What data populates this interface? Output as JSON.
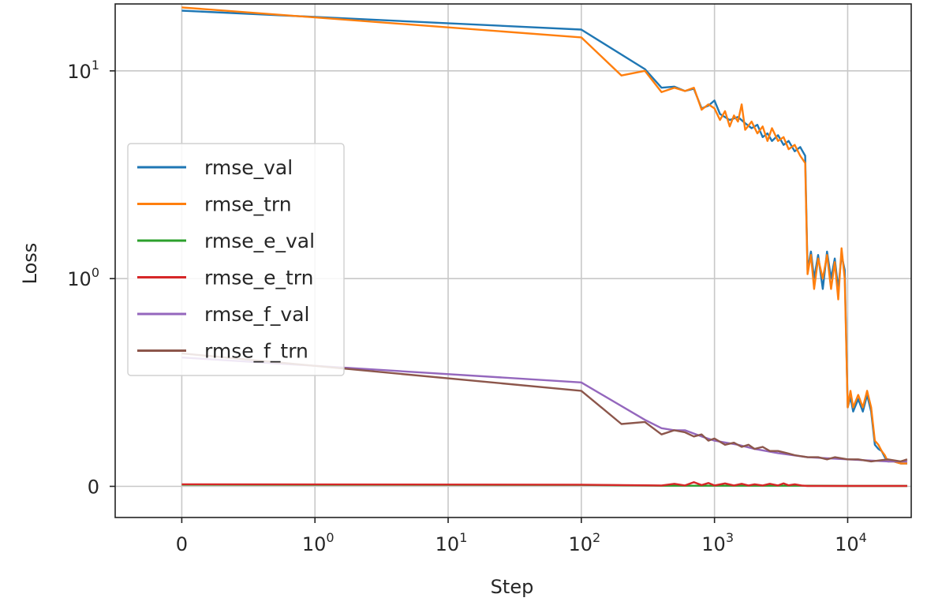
{
  "chart_data": {
    "type": "line",
    "xlabel": "Step",
    "ylabel": "Loss",
    "x_scale": "symlog",
    "y_scale": "symlog",
    "xlim": [
      -0.5,
      30000
    ],
    "ylim": [
      -0.15,
      21
    ],
    "grid": true,
    "legend_position": "center-left",
    "x_ticks": [
      {
        "value": 0,
        "base": "0",
        "exp": ""
      },
      {
        "value": 1,
        "base": "10",
        "exp": "0"
      },
      {
        "value": 10,
        "base": "10",
        "exp": "1"
      },
      {
        "value": 100,
        "base": "10",
        "exp": "2"
      },
      {
        "value": 1000,
        "base": "10",
        "exp": "3"
      },
      {
        "value": 10000,
        "base": "10",
        "exp": "4"
      }
    ],
    "y_ticks": [
      {
        "value": 0,
        "base": "0",
        "exp": ""
      },
      {
        "value": 1,
        "base": "10",
        "exp": "0"
      },
      {
        "value": 10,
        "base": "10",
        "exp": "1"
      }
    ],
    "series": [
      {
        "name": "rmse_val",
        "color": "#1f77b4",
        "points": [
          [
            0,
            19.5
          ],
          [
            100,
            15.8
          ],
          [
            300,
            10.2
          ],
          [
            400,
            8.3
          ],
          [
            500,
            8.4
          ],
          [
            600,
            8.0
          ],
          [
            700,
            8.2
          ],
          [
            800,
            6.6
          ],
          [
            900,
            6.8
          ],
          [
            1000,
            7.2
          ],
          [
            1100,
            6.2
          ],
          [
            1300,
            5.8
          ],
          [
            1500,
            6.0
          ],
          [
            1700,
            5.6
          ],
          [
            1900,
            5.3
          ],
          [
            2100,
            5.5
          ],
          [
            2300,
            4.8
          ],
          [
            2500,
            5.0
          ],
          [
            2700,
            4.6
          ],
          [
            3000,
            4.9
          ],
          [
            3300,
            4.4
          ],
          [
            3600,
            4.6
          ],
          [
            4000,
            4.1
          ],
          [
            4400,
            4.3
          ],
          [
            4800,
            3.9
          ],
          [
            5000,
            1.1
          ],
          [
            5300,
            1.35
          ],
          [
            5600,
            1.0
          ],
          [
            6000,
            1.3
          ],
          [
            6500,
            0.95
          ],
          [
            7000,
            1.35
          ],
          [
            7500,
            1.0
          ],
          [
            8000,
            1.25
          ],
          [
            8500,
            0.95
          ],
          [
            9000,
            1.3
          ],
          [
            9500,
            1.1
          ],
          [
            10000,
            0.38
          ],
          [
            10500,
            0.43
          ],
          [
            11000,
            0.36
          ],
          [
            12000,
            0.42
          ],
          [
            13000,
            0.36
          ],
          [
            14000,
            0.44
          ],
          [
            15000,
            0.36
          ],
          [
            16000,
            0.2
          ],
          [
            17000,
            0.18
          ],
          [
            18000,
            0.17
          ],
          [
            19000,
            0.14
          ],
          [
            20000,
            0.12
          ],
          [
            22000,
            0.12
          ],
          [
            25000,
            0.11
          ],
          [
            28000,
            0.11
          ]
        ]
      },
      {
        "name": "rmse_trn",
        "color": "#ff7f0e",
        "points": [
          [
            0,
            20.2
          ],
          [
            100,
            14.5
          ],
          [
            200,
            9.5
          ],
          [
            300,
            10.0
          ],
          [
            400,
            7.9
          ],
          [
            500,
            8.3
          ],
          [
            600,
            8.0
          ],
          [
            700,
            8.3
          ],
          [
            800,
            6.5
          ],
          [
            900,
            6.9
          ],
          [
            1000,
            6.6
          ],
          [
            1100,
            5.8
          ],
          [
            1200,
            6.4
          ],
          [
            1300,
            5.4
          ],
          [
            1400,
            6.1
          ],
          [
            1500,
            5.7
          ],
          [
            1600,
            6.9
          ],
          [
            1700,
            5.2
          ],
          [
            1900,
            5.7
          ],
          [
            2100,
            5.0
          ],
          [
            2300,
            5.4
          ],
          [
            2500,
            4.6
          ],
          [
            2700,
            5.3
          ],
          [
            3000,
            4.6
          ],
          [
            3300,
            4.8
          ],
          [
            3600,
            4.2
          ],
          [
            4000,
            4.4
          ],
          [
            4400,
            3.9
          ],
          [
            4800,
            3.6
          ],
          [
            5000,
            1.05
          ],
          [
            5300,
            1.3
          ],
          [
            5600,
            0.95
          ],
          [
            6000,
            1.25
          ],
          [
            6500,
            1.0
          ],
          [
            7000,
            1.3
          ],
          [
            7500,
            0.95
          ],
          [
            8000,
            1.2
          ],
          [
            8500,
            0.9
          ],
          [
            9000,
            1.4
          ],
          [
            9500,
            1.0
          ],
          [
            10000,
            0.38
          ],
          [
            10500,
            0.46
          ],
          [
            11000,
            0.38
          ],
          [
            12000,
            0.44
          ],
          [
            13000,
            0.38
          ],
          [
            14000,
            0.46
          ],
          [
            15000,
            0.38
          ],
          [
            16000,
            0.22
          ],
          [
            17000,
            0.2
          ],
          [
            18000,
            0.17
          ],
          [
            19000,
            0.15
          ],
          [
            20000,
            0.12
          ],
          [
            22000,
            0.12
          ],
          [
            25000,
            0.11
          ],
          [
            28000,
            0.11
          ]
        ]
      },
      {
        "name": "rmse_e_val",
        "color": "#2ca02c",
        "points": [
          [
            0,
            0.008
          ],
          [
            100,
            0.007
          ],
          [
            300,
            0.004
          ],
          [
            400,
            0.003
          ],
          [
            1000,
            0.003
          ],
          [
            5000,
            0.003
          ],
          [
            10000,
            0.002
          ],
          [
            28000,
            0.002
          ]
        ]
      },
      {
        "name": "rmse_e_trn",
        "color": "#d62728",
        "points": [
          [
            0,
            0.01
          ],
          [
            100,
            0.008
          ],
          [
            300,
            0.005
          ],
          [
            400,
            0.004
          ],
          [
            500,
            0.012
          ],
          [
            600,
            0.004
          ],
          [
            700,
            0.02
          ],
          [
            800,
            0.006
          ],
          [
            900,
            0.016
          ],
          [
            1000,
            0.004
          ],
          [
            1200,
            0.014
          ],
          [
            1400,
            0.004
          ],
          [
            1600,
            0.012
          ],
          [
            1800,
            0.004
          ],
          [
            2000,
            0.01
          ],
          [
            2300,
            0.004
          ],
          [
            2600,
            0.012
          ],
          [
            3000,
            0.004
          ],
          [
            3300,
            0.014
          ],
          [
            3600,
            0.005
          ],
          [
            4000,
            0.01
          ],
          [
            4500,
            0.004
          ],
          [
            5000,
            0.002
          ],
          [
            10000,
            0.002
          ],
          [
            28000,
            0.002
          ]
        ]
      },
      {
        "name": "rmse_f_val",
        "color": "#9467bd",
        "points": [
          [
            0,
            0.62
          ],
          [
            100,
            0.5
          ],
          [
            300,
            0.32
          ],
          [
            400,
            0.28
          ],
          [
            500,
            0.27
          ],
          [
            600,
            0.27
          ],
          [
            800,
            0.24
          ],
          [
            1000,
            0.22
          ],
          [
            1500,
            0.2
          ],
          [
            2000,
            0.18
          ],
          [
            3000,
            0.16
          ],
          [
            5000,
            0.14
          ],
          [
            10000,
            0.13
          ],
          [
            20000,
            0.12
          ],
          [
            28000,
            0.12
          ]
        ]
      },
      {
        "name": "rmse_f_trn",
        "color": "#8c564b",
        "points": [
          [
            0,
            0.64
          ],
          [
            100,
            0.46
          ],
          [
            200,
            0.3
          ],
          [
            300,
            0.31
          ],
          [
            400,
            0.25
          ],
          [
            500,
            0.27
          ],
          [
            600,
            0.26
          ],
          [
            700,
            0.24
          ],
          [
            800,
            0.25
          ],
          [
            900,
            0.22
          ],
          [
            1000,
            0.23
          ],
          [
            1200,
            0.2
          ],
          [
            1400,
            0.21
          ],
          [
            1600,
            0.19
          ],
          [
            1800,
            0.2
          ],
          [
            2000,
            0.18
          ],
          [
            2300,
            0.19
          ],
          [
            2600,
            0.17
          ],
          [
            3000,
            0.17
          ],
          [
            3500,
            0.16
          ],
          [
            4000,
            0.15
          ],
          [
            5000,
            0.14
          ],
          [
            6000,
            0.14
          ],
          [
            7000,
            0.13
          ],
          [
            8000,
            0.14
          ],
          [
            10000,
            0.13
          ],
          [
            12000,
            0.13
          ],
          [
            15000,
            0.12
          ],
          [
            20000,
            0.13
          ],
          [
            25000,
            0.12
          ],
          [
            28000,
            0.13
          ]
        ]
      }
    ]
  }
}
